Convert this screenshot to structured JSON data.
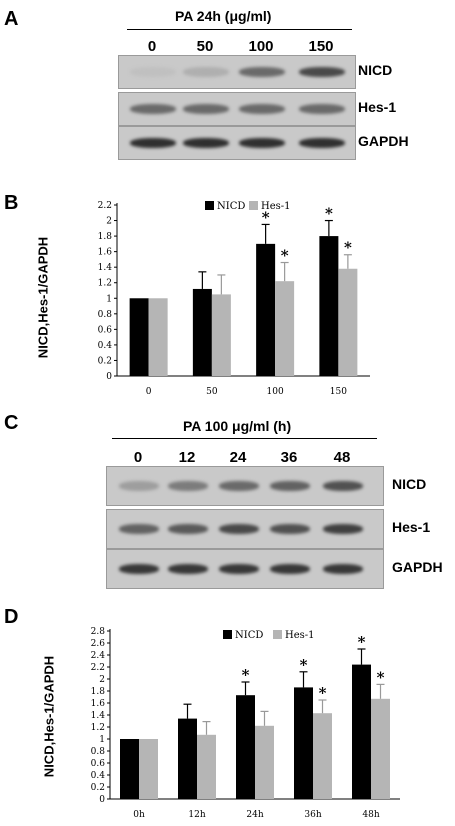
{
  "panelA": {
    "letter": "A",
    "condition": "PA 24h (μg/ml)",
    "lanes": [
      "0",
      "50",
      "100",
      "150"
    ],
    "blots": [
      {
        "label": "NICD",
        "band_intensity": [
          0.05,
          0.15,
          0.55,
          0.75
        ]
      },
      {
        "label": "Hes-1",
        "band_intensity": [
          0.55,
          0.55,
          0.55,
          0.55
        ]
      },
      {
        "label": "GAPDH",
        "band_intensity": [
          0.9,
          0.9,
          0.9,
          0.9
        ]
      }
    ]
  },
  "panelC": {
    "letter": "C",
    "condition": "PA 100 μg/ml (h)",
    "lanes": [
      "0",
      "12",
      "24",
      "36",
      "48"
    ],
    "blots": [
      {
        "label": "NICD",
        "band_intensity": [
          0.25,
          0.45,
          0.55,
          0.6,
          0.7
        ]
      },
      {
        "label": "Hes-1",
        "band_intensity": [
          0.6,
          0.65,
          0.75,
          0.7,
          0.8
        ]
      },
      {
        "label": "GAPDH",
        "band_intensity": [
          0.85,
          0.85,
          0.85,
          0.85,
          0.85
        ]
      }
    ]
  },
  "chart_data": [
    {
      "panel": "B",
      "type": "bar",
      "categories": [
        "0",
        "50",
        "100",
        "150"
      ],
      "series": [
        {
          "name": "NICD",
          "color": "#000000",
          "values": [
            1.0,
            1.12,
            1.7,
            1.8
          ],
          "errors": [
            0,
            0.22,
            0.25,
            0.2
          ],
          "significance": [
            "",
            "",
            "*",
            "*"
          ]
        },
        {
          "name": "Hes-1",
          "color": "#b5b5b5",
          "values": [
            1.0,
            1.05,
            1.22,
            1.38
          ],
          "errors": [
            0,
            0.25,
            0.24,
            0.18
          ],
          "significance": [
            "",
            "",
            "*",
            "*"
          ]
        }
      ],
      "ylabel": "NICD,Hes-1/GAPDH",
      "ylim": [
        0,
        2.2
      ],
      "yticks": [
        "0",
        "0.2",
        "0.4",
        "0.6",
        "0.8",
        "1",
        "1.2",
        "1.4",
        "1.6",
        "1.8",
        "2",
        "2.2"
      ],
      "legend": "top"
    },
    {
      "panel": "D",
      "type": "bar",
      "categories": [
        "0h",
        "12h",
        "24h",
        "36h",
        "48h"
      ],
      "series": [
        {
          "name": "NICD",
          "color": "#000000",
          "values": [
            1.0,
            1.34,
            1.73,
            1.86,
            2.24
          ],
          "errors": [
            0,
            0.24,
            0.22,
            0.26,
            0.26
          ],
          "significance": [
            "",
            "",
            "*",
            "*",
            "*"
          ]
        },
        {
          "name": "Hes-1",
          "color": "#b5b5b5",
          "values": [
            1.0,
            1.07,
            1.22,
            1.43,
            1.67
          ],
          "errors": [
            0,
            0.22,
            0.24,
            0.22,
            0.24
          ],
          "significance": [
            "",
            "",
            "",
            "*",
            "*"
          ]
        }
      ],
      "ylabel": "NICD,Hes-1/GAPDH",
      "ylim": [
        0,
        2.8
      ],
      "yticks": [
        "0",
        "0.2",
        "0.4",
        "0.6",
        "0.8",
        "1",
        "1.2",
        "1.4",
        "1.6",
        "1.8",
        "2",
        "2.2",
        "2.4",
        "2.6",
        "2.8"
      ],
      "legend": "top"
    }
  ]
}
